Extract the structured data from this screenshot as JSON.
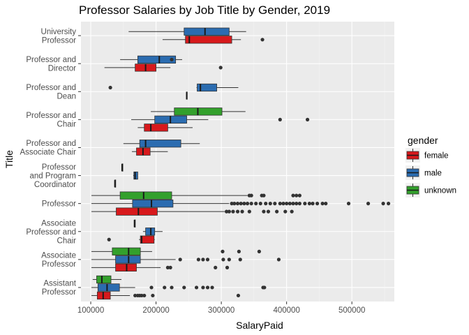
{
  "chart_data": {
    "type": "boxplot",
    "orientation": "horizontal",
    "title": "Professor Salaries by Job Title by Gender, 2019",
    "xlabel": "SalaryPaid",
    "ylabel": "Title",
    "xlim": [
      85000,
      565000
    ],
    "xticks": [
      100000,
      200000,
      300000,
      400000,
      500000
    ],
    "xtick_labels": [
      "100000",
      "200000",
      "300000",
      "400000",
      "500000"
    ],
    "grid": true,
    "legend": {
      "title": "gender",
      "position": "right",
      "entries": [
        {
          "key": "female",
          "label": "female",
          "color": "#d7191c"
        },
        {
          "key": "male",
          "label": "male",
          "color": "#2b6cb0"
        },
        {
          "key": "unknown",
          "label": "unknown",
          "color": "#33a02c"
        }
      ]
    },
    "categories": [
      {
        "id": "university-professor",
        "lines": [
          "University",
          "Professor"
        ],
        "boxes": [
          {
            "group": "male",
            "min": 158000,
            "q1": 243000,
            "median": 275000,
            "q3": 312000,
            "max": 338000,
            "outliers": []
          },
          {
            "group": "female",
            "min": 210000,
            "q1": 245000,
            "median": 251000,
            "q3": 316000,
            "max": 330000,
            "outliers": [
              363000
            ]
          }
        ]
      },
      {
        "id": "professor-and-director",
        "lines": [
          "Professor and",
          "Director"
        ],
        "boxes": [
          {
            "group": "male",
            "min": 145000,
            "q1": 172000,
            "median": 205000,
            "q3": 230000,
            "max": 240000,
            "outliers": [
              224000
            ]
          },
          {
            "group": "female",
            "min": 121000,
            "q1": 168000,
            "median": 184000,
            "q3": 200000,
            "max": 222000,
            "outliers": [
              299000
            ]
          }
        ]
      },
      {
        "id": "professor-and-dean",
        "lines": [
          "Professor and",
          "Dean"
        ],
        "boxes": [
          {
            "group": "male",
            "min": 262000,
            "q1": 263000,
            "median": 268000,
            "q3": 293000,
            "max": 326000,
            "outliers": [
              130000
            ]
          },
          {
            "group": "female",
            "min": 246000,
            "q1": 246500,
            "median": 247000,
            "q3": 247500,
            "max": 248000,
            "outliers": []
          }
        ]
      },
      {
        "id": "professor-and-chair",
        "lines": [
          "Professor and",
          "Chair"
        ],
        "boxes": [
          {
            "group": "unknown",
            "min": 192000,
            "q1": 228000,
            "median": 264000,
            "q3": 301000,
            "max": 337000,
            "outliers": []
          },
          {
            "group": "male",
            "min": 162000,
            "q1": 198000,
            "median": 222000,
            "q3": 247000,
            "max": 280000,
            "outliers": [
              390000,
              432000
            ]
          },
          {
            "group": "female",
            "min": 172000,
            "q1": 182000,
            "median": 192000,
            "q3": 218000,
            "max": 256000,
            "outliers": []
          }
        ]
      },
      {
        "id": "professor-and-associate-chair",
        "lines": [
          "Professor and",
          "Associate Chair"
        ],
        "boxes": [
          {
            "group": "male",
            "min": 150000,
            "q1": 175000,
            "median": 184000,
            "q3": 238000,
            "max": 267000,
            "outliers": []
          },
          {
            "group": "female",
            "min": 163000,
            "q1": 170000,
            "median": 180000,
            "q3": 191000,
            "max": 218000,
            "outliers": []
          }
        ]
      },
      {
        "id": "professor-and-program-coordinator",
        "lines": [
          "Professor",
          "and Program",
          "Coordinator"
        ],
        "boxes": [
          {
            "group": "unknown",
            "min": 148000,
            "q1": 148000,
            "median": 148000,
            "q3": 148000,
            "max": 148000,
            "outliers": []
          },
          {
            "group": "male",
            "min": 165000,
            "q1": 166000,
            "median": 168000,
            "q3": 172000,
            "max": 172000,
            "outliers": []
          },
          {
            "group": "female",
            "min": 137000,
            "q1": 137000,
            "median": 137000,
            "q3": 137000,
            "max": 137000,
            "outliers": []
          }
        ]
      },
      {
        "id": "professor",
        "lines": [
          "Professor"
        ],
        "boxes": [
          {
            "group": "unknown",
            "min": 101000,
            "q1": 145000,
            "median": 181000,
            "q3": 224000,
            "max": 340000,
            "outliers": [
              343000,
              346000,
              362000,
              365000,
              410000,
              415000,
              420000
            ]
          },
          {
            "group": "male",
            "min": 101000,
            "q1": 164000,
            "median": 193000,
            "q3": 226000,
            "max": 312000,
            "outliers": [
              316000,
              320000,
              325000,
              330000,
              335000,
              340000,
              346000,
              353000,
              360000,
              368000,
              375000,
              382000,
              390000,
              395000,
              400000,
              405000,
              410000,
              415000,
              420000,
              428000,
              435000,
              440000,
              447000,
              455000,
              460000,
              495000,
              525000,
              548000,
              556000
            ]
          },
          {
            "group": "female",
            "min": 101000,
            "q1": 139000,
            "median": 173000,
            "q3": 202000,
            "max": 305000,
            "outliers": [
              308000,
              312000,
              318000,
              325000,
              332000,
              343000,
              365000,
              372000,
              385000,
              398000,
              408000
            ]
          }
        ]
      },
      {
        "id": "associate-professor-and-chair",
        "lines": [
          "Associate",
          "Professor and",
          "Chair"
        ],
        "boxes": [
          {
            "group": "unknown",
            "min": 167000,
            "q1": 167000,
            "median": 167000,
            "q3": 167000,
            "max": 167000,
            "outliers": []
          },
          {
            "group": "male",
            "min": 180000,
            "q1": 184000,
            "median": 192000,
            "q3": 198000,
            "max": 210000,
            "outliers": []
          },
          {
            "group": "female",
            "min": 174000,
            "q1": 176000,
            "median": 178000,
            "q3": 197000,
            "max": 198000,
            "outliers": [
              128000
            ]
          }
        ]
      },
      {
        "id": "associate-professor",
        "lines": [
          "Associate",
          "Professor"
        ],
        "boxes": [
          {
            "group": "unknown",
            "min": 101000,
            "q1": 133000,
            "median": 158000,
            "q3": 176000,
            "max": 194000,
            "outliers": [
              302000,
              327000,
              358000
            ]
          },
          {
            "group": "male",
            "min": 101000,
            "q1": 138000,
            "median": 158000,
            "q3": 176000,
            "max": 230000,
            "outliers": [
              237000,
              265000,
              272000,
              279000,
              303000,
              312000,
              329000,
              388000
            ]
          },
          {
            "group": "female",
            "min": 101000,
            "q1": 138000,
            "median": 155000,
            "q3": 170000,
            "max": 207000,
            "outliers": [
              218000,
              222000,
              291000,
              309000
            ]
          }
        ]
      },
      {
        "id": "assistant-professor",
        "lines": [
          "Assistant",
          "Professor"
        ],
        "boxes": [
          {
            "group": "unknown",
            "min": 103000,
            "q1": 109000,
            "median": 117000,
            "q3": 131000,
            "max": 147000,
            "outliers": []
          },
          {
            "group": "male",
            "min": 101000,
            "q1": 111000,
            "median": 125000,
            "q3": 144000,
            "max": 168000,
            "outliers": [
              193000,
              213000,
              224000,
              243000,
              262000,
              272000,
              279000,
              286000,
              364000,
              366000
            ]
          },
          {
            "group": "female",
            "min": 101000,
            "q1": 110000,
            "median": 119000,
            "q3": 130000,
            "max": 160000,
            "outliers": [
              168000,
              172000,
              175000,
              178000,
              182000,
              195000,
              326000
            ]
          }
        ]
      }
    ]
  }
}
